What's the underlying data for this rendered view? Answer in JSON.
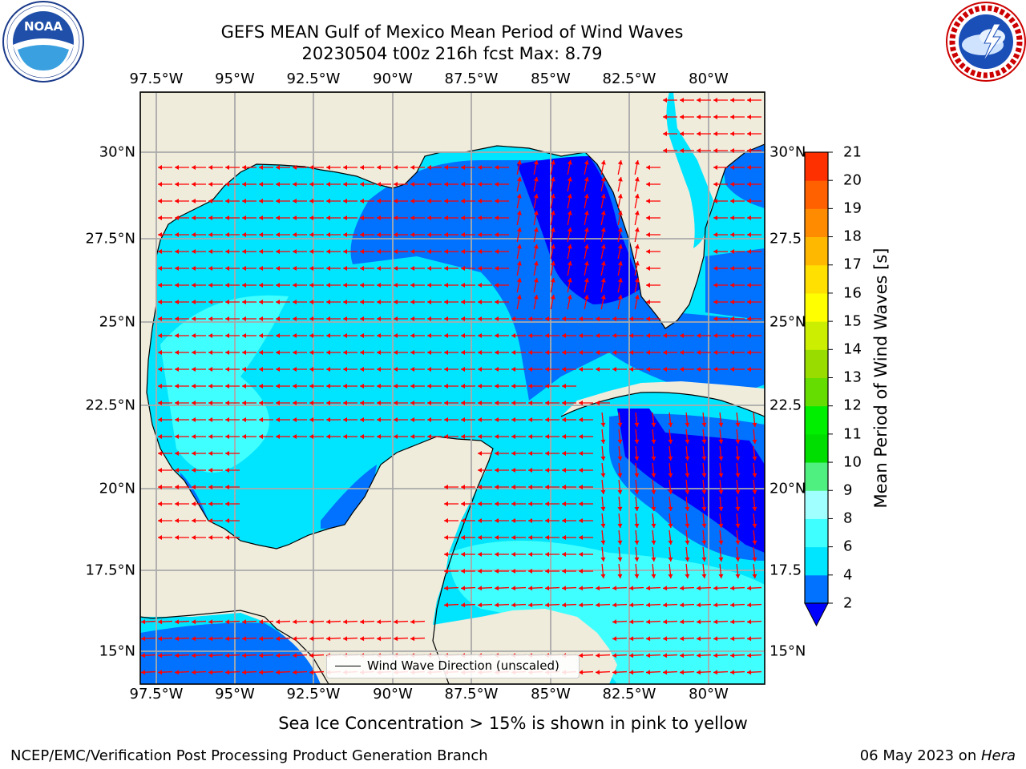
{
  "title": {
    "line1": "GEFS MEAN Gulf of Mexico Mean Period of Wind Waves",
    "line2": "20230504 t00z 216h fcst   Max: 8.79"
  },
  "logos": {
    "left": {
      "name": "NOAA",
      "ring_text": "NATIONAL OCEANIC AND ATMOSPHERIC ADMINISTRATION · U.S. DEPARTMENT OF COMMERCE",
      "icon": "noaa-logo-icon"
    },
    "right": {
      "name": "NATIONAL WEATHER SERVICE",
      "icon": "nws-logo-icon"
    }
  },
  "map": {
    "lon_labels": [
      "97.5°W",
      "95°W",
      "92.5°W",
      "90°W",
      "87.5°W",
      "85°W",
      "82.5°W",
      "80°W"
    ],
    "lat_labels_left": [
      "30°N",
      "27.5°N",
      "25°N",
      "22.5°N",
      "20°N",
      "17.5°N",
      "15°N"
    ],
    "lat_labels_right": [
      "30°N",
      "27.5",
      "25°N",
      "22.5",
      "20°N",
      "17.5",
      "15°N"
    ],
    "lon_range": [
      -98,
      -78.2
    ],
    "lat_range": [
      14,
      31.8
    ],
    "land_color": "#efecdc",
    "vector_color": "#ff0000",
    "wave_direction": "mostly westward, southward in the Caribbean"
  },
  "legend": {
    "label": "Wind Wave Direction (unscaled)"
  },
  "colorbar": {
    "label": "Mean Period of Wind Waves [s]",
    "ticks": [
      "2",
      "4",
      "6",
      "8",
      "9",
      "10",
      "11",
      "12",
      "13",
      "14",
      "15",
      "16",
      "17",
      "18",
      "19",
      "20",
      "21"
    ],
    "colors": [
      "#0072ff",
      "#00e5ff",
      "#40ffff",
      "#a0ffff",
      "#50f080",
      "#00dd00",
      "#00ee00",
      "#66dd00",
      "#99dd00",
      "#ccee00",
      "#ffff00",
      "#ffe000",
      "#ffb800",
      "#ff8c00",
      "#ff6000",
      "#ff3000"
    ],
    "extend_color": "#0000ff"
  },
  "caption": "Sea Ice Concentration > 15% is shown in pink to yellow",
  "footer": {
    "left": "NCEP/EMC/Verification Post Processing Product Generation Branch",
    "right_date": "06 May 2023 on ",
    "right_host": "Hera"
  }
}
